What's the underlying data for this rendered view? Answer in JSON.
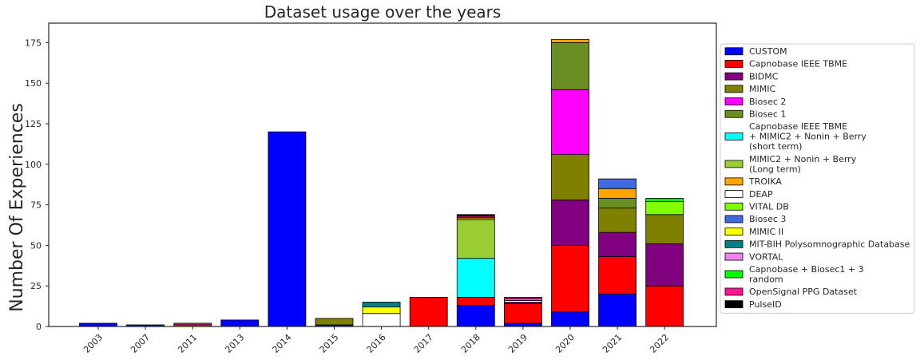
{
  "chart_data": {
    "type": "bar",
    "stacked": true,
    "title": "Dataset usage over the years",
    "xlabel": "",
    "ylabel": "Number Of Experiences",
    "ylim": [
      0,
      187
    ],
    "yticks": [
      0,
      25,
      50,
      75,
      100,
      125,
      150,
      175
    ],
    "grid": false,
    "legend_position": "right",
    "categories": [
      "2003",
      "2007",
      "2011",
      "2013",
      "2014",
      "2015",
      "2016",
      "2017",
      "2018",
      "2019",
      "2020",
      "2021",
      "2022"
    ],
    "series": [
      {
        "name": "CUSTOM",
        "color": "#0000ff",
        "values": [
          2,
          1,
          0,
          4,
          120,
          1,
          0,
          0,
          13,
          2,
          9,
          20,
          0
        ]
      },
      {
        "name": "Capnobase IEEE TBME",
        "color": "#ff0000",
        "values": [
          0,
          0,
          0,
          0,
          0,
          0,
          0,
          18,
          5,
          12,
          41,
          23,
          25
        ]
      },
      {
        "name": "BIDMC",
        "color": "#800080",
        "values": [
          0,
          0,
          0,
          0,
          0,
          0,
          0,
          0,
          0,
          1,
          28,
          15,
          26
        ]
      },
      {
        "name": "MIMIC",
        "color": "#808000",
        "values": [
          0,
          0,
          1,
          0,
          0,
          4,
          0,
          0,
          0,
          0,
          28,
          15,
          18
        ]
      },
      {
        "name": "Biosec 2",
        "color": "#ff00ff",
        "values": [
          0,
          0,
          0,
          0,
          0,
          0,
          0,
          0,
          0,
          0,
          40,
          0,
          0
        ]
      },
      {
        "name": "Biosec 1",
        "color": "#6b8e23",
        "values": [
          0,
          0,
          0,
          0,
          0,
          0,
          0,
          0,
          0,
          0,
          29,
          6,
          0
        ]
      },
      {
        "name": "Capnobase IEEE TBME\n+ MIMIC2 + Nonin + Berry\n(short term)",
        "color": "#00ffff",
        "values": [
          0,
          0,
          0,
          0,
          0,
          0,
          0,
          0,
          24,
          0,
          0,
          0,
          0
        ]
      },
      {
        "name": "MIMIC2 + Nonin + Berry\n(Long term)",
        "color": "#9acd32",
        "values": [
          0,
          0,
          0,
          0,
          0,
          0,
          0,
          0,
          24,
          0,
          0,
          0,
          0
        ]
      },
      {
        "name": "TROIKA",
        "color": "#ffa500",
        "values": [
          0,
          0,
          0,
          0,
          0,
          0,
          0,
          0,
          1,
          0,
          2,
          6,
          0
        ]
      },
      {
        "name": "DEAP",
        "color": "#ffffff",
        "values": [
          0,
          0,
          0,
          0,
          0,
          0,
          8,
          0,
          0,
          1,
          0,
          0,
          0
        ]
      },
      {
        "name": "VITAL DB",
        "color": "#7fff00",
        "values": [
          0,
          0,
          0,
          0,
          0,
          0,
          0,
          0,
          0,
          0,
          0,
          0,
          8
        ]
      },
      {
        "name": "Biosec 3",
        "color": "#4169e1",
        "values": [
          0,
          0,
          0,
          0,
          0,
          0,
          0,
          0,
          0,
          0,
          0,
          6,
          0
        ]
      },
      {
        "name": "MIMIC II",
        "color": "#ffff00",
        "values": [
          0,
          0,
          0,
          0,
          0,
          0,
          4,
          0,
          0,
          0,
          0,
          0,
          0
        ]
      },
      {
        "name": "MIT-BIH Polysomnographic Database",
        "color": "#008080",
        "values": [
          0,
          0,
          0,
          0,
          0,
          0,
          3,
          0,
          0,
          0,
          0,
          0,
          0
        ]
      },
      {
        "name": "VORTAL",
        "color": "#ee82ee",
        "values": [
          0,
          0,
          0,
          0,
          0,
          0,
          0,
          0,
          0,
          1,
          0,
          0,
          0
        ]
      },
      {
        "name": "Capnobase + Biosec1 + 3\nrandom",
        "color": "#00ff00",
        "values": [
          0,
          0,
          0,
          0,
          0,
          0,
          0,
          0,
          0,
          0,
          0,
          0,
          2
        ]
      },
      {
        "name": "OpenSignal PPG Dataset",
        "color": "#ff1493",
        "values": [
          0,
          0,
          1,
          0,
          0,
          0,
          0,
          0,
          1,
          1,
          0,
          0,
          0
        ]
      },
      {
        "name": "PulseID",
        "color": "#000000",
        "values": [
          0,
          0,
          0,
          0,
          0,
          0,
          0,
          0,
          1,
          0,
          0,
          0,
          0
        ]
      }
    ]
  }
}
